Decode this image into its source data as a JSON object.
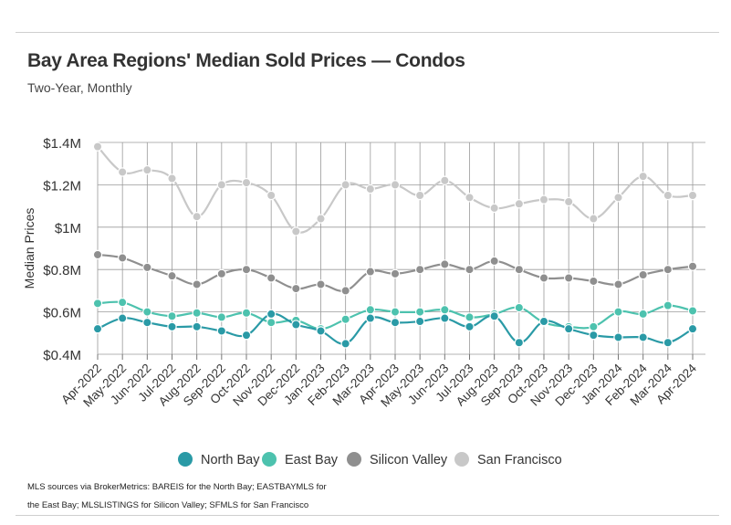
{
  "chart_data": {
    "type": "line",
    "title": "Bay Area Regions' Median Sold Prices — Condos",
    "subtitle": "Two-Year, Monthly",
    "xlabel": "",
    "ylabel": "Median Prices",
    "ylim": [
      0.4,
      1.4
    ],
    "y_ticks": [
      0.4,
      0.6,
      0.8,
      1.0,
      1.2,
      1.4
    ],
    "y_tick_labels": [
      "$0.4M",
      "$0.6M",
      "$0.8M",
      "$1M",
      "$1.2M",
      "$1.4M"
    ],
    "grid": true,
    "legend_position": "bottom",
    "categories": [
      "Apr-2022",
      "May-2022",
      "Jun-2022",
      "Jul-2022",
      "Aug-2022",
      "Sep-2022",
      "Oct-2022",
      "Nov-2022",
      "Dec-2022",
      "Jan-2023",
      "Feb-2023",
      "Mar-2023",
      "Apr-2023",
      "May-2023",
      "Jun-2023",
      "Jul-2023",
      "Aug-2023",
      "Sep-2023",
      "Oct-2023",
      "Nov-2023",
      "Dec-2023",
      "Jan-2024",
      "Feb-2024",
      "Mar-2024",
      "Apr-2024"
    ],
    "series": [
      {
        "name": "North Bay",
        "color": "#2a9aa6",
        "values": [
          0.52,
          0.57,
          0.55,
          0.53,
          0.53,
          0.51,
          0.49,
          0.59,
          0.54,
          0.51,
          0.45,
          0.57,
          0.55,
          0.555,
          0.57,
          0.53,
          0.58,
          0.455,
          0.555,
          0.52,
          0.49,
          0.48,
          0.48,
          0.455,
          0.52
        ]
      },
      {
        "name": "East Bay",
        "color": "#4dc2ae",
        "values": [
          0.64,
          0.645,
          0.6,
          0.58,
          0.595,
          0.575,
          0.595,
          0.55,
          0.56,
          0.52,
          0.565,
          0.61,
          0.6,
          0.6,
          0.61,
          0.575,
          0.59,
          0.62,
          0.55,
          0.53,
          0.53,
          0.6,
          0.59,
          0.63,
          0.605
        ]
      },
      {
        "name": "Silicon Valley",
        "color": "#8f8f8f",
        "values": [
          0.87,
          0.855,
          0.81,
          0.77,
          0.73,
          0.78,
          0.8,
          0.76,
          0.71,
          0.73,
          0.7,
          0.79,
          0.78,
          0.8,
          0.825,
          0.8,
          0.84,
          0.8,
          0.76,
          0.76,
          0.745,
          0.73,
          0.775,
          0.8,
          0.815
        ]
      },
      {
        "name": "San Francisco",
        "color": "#c8c8c8",
        "values": [
          1.38,
          1.26,
          1.27,
          1.23,
          1.05,
          1.2,
          1.21,
          1.15,
          0.98,
          1.04,
          1.2,
          1.18,
          1.2,
          1.15,
          1.22,
          1.14,
          1.09,
          1.11,
          1.13,
          1.12,
          1.04,
          1.14,
          1.24,
          1.15,
          1.15
        ]
      }
    ]
  },
  "source_note": "MLS sources via BrokerMetrics: BAREIS for the North Bay; EASTBAYMLS for the East Bay; MLSLISTINGS for Silicon Valley; SFMLS for San Francisco"
}
